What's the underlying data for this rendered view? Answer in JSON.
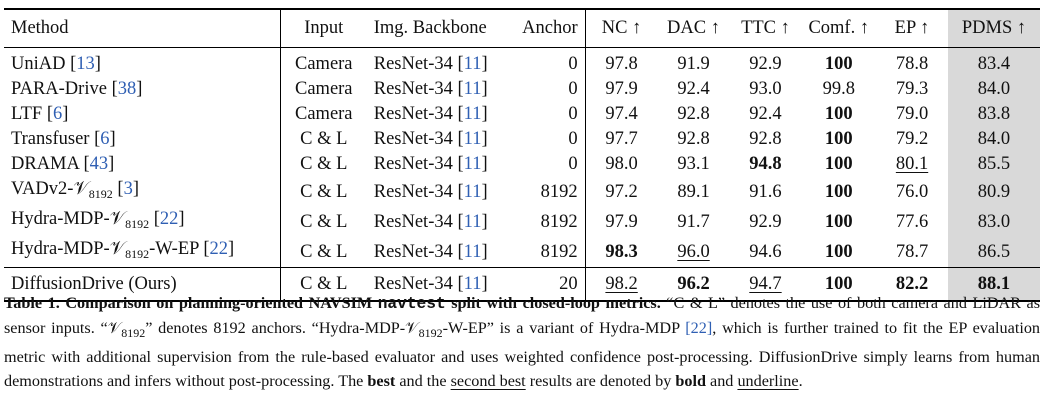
{
  "table": {
    "headers": {
      "method": "Method",
      "input": "Input",
      "backbone": "Img. Backbone",
      "anchor": "Anchor",
      "nc": "NC ↑",
      "dac": "DAC ↑",
      "ttc": "TTC ↑",
      "comf": "Comf. ↑",
      "ep": "EP ↑",
      "pdms": "PDMS ↑"
    },
    "rows": [
      {
        "method": "UniAD",
        "method_sub": "",
        "method_suffix": "",
        "cite": "13",
        "input": "Camera",
        "backbone": "ResNet-34",
        "backbone_cite": "11",
        "anchor": "0",
        "nc": "97.8",
        "dac": "91.9",
        "ttc": "92.9",
        "comf": "100",
        "ep": "78.8",
        "pdms": "83.4"
      },
      {
        "method": "PARA-Drive",
        "method_sub": "",
        "method_suffix": "",
        "cite": "38",
        "input": "Camera",
        "backbone": "ResNet-34",
        "backbone_cite": "11",
        "anchor": "0",
        "nc": "97.9",
        "dac": "92.4",
        "ttc": "93.0",
        "comf": "99.8",
        "ep": "79.3",
        "pdms": "84.0"
      },
      {
        "method": "LTF",
        "method_sub": "",
        "method_suffix": "",
        "cite": "6",
        "input": "Camera",
        "backbone": "ResNet-34",
        "backbone_cite": "11",
        "anchor": "0",
        "nc": "97.4",
        "dac": "92.8",
        "ttc": "92.4",
        "comf": "100",
        "ep": "79.0",
        "pdms": "83.8"
      },
      {
        "method": "Transfuser",
        "method_sub": "",
        "method_suffix": "",
        "cite": "6",
        "input": "C & L",
        "backbone": "ResNet-34",
        "backbone_cite": "11",
        "anchor": "0",
        "nc": "97.7",
        "dac": "92.8",
        "ttc": "92.8",
        "comf": "100",
        "ep": "79.2",
        "pdms": "84.0"
      },
      {
        "method": "DRAMA",
        "method_sub": "",
        "method_suffix": "",
        "cite": "43",
        "input": "C & L",
        "backbone": "ResNet-34",
        "backbone_cite": "11",
        "anchor": "0",
        "nc": "98.0",
        "dac": "93.1",
        "ttc": "94.8",
        "comf": "100",
        "ep": "80.1",
        "pdms": "85.5"
      },
      {
        "method": "VADv2-𝒱",
        "method_sub": "8192",
        "method_suffix": "",
        "cite": "3",
        "input": "C & L",
        "backbone": "ResNet-34",
        "backbone_cite": "11",
        "anchor": "8192",
        "nc": "97.2",
        "dac": "89.1",
        "ttc": "91.6",
        "comf": "100",
        "ep": "76.0",
        "pdms": "80.9"
      },
      {
        "method": "Hydra-MDP-𝒱",
        "method_sub": "8192",
        "method_suffix": "",
        "cite": "22",
        "input": "C & L",
        "backbone": "ResNet-34",
        "backbone_cite": "11",
        "anchor": "8192",
        "nc": "97.9",
        "dac": "91.7",
        "ttc": "92.9",
        "comf": "100",
        "ep": "77.6",
        "pdms": "83.0"
      },
      {
        "method": "Hydra-MDP-𝒱",
        "method_sub": "8192",
        "method_suffix": "-W-EP",
        "cite": "22",
        "input": "C & L",
        "backbone": "ResNet-34",
        "backbone_cite": "11",
        "anchor": "8192",
        "nc": "98.3",
        "dac": "96.0",
        "ttc": "94.6",
        "comf": "100",
        "ep": "78.7",
        "pdms": "86.5"
      },
      {
        "method": "DiffusionDrive (Ours)",
        "method_sub": "",
        "method_suffix": "",
        "cite": "",
        "input": "C & L",
        "backbone": "ResNet-34",
        "backbone_cite": "11",
        "anchor": "20",
        "nc": "98.2",
        "dac": "96.2",
        "ttc": "94.7",
        "comf": "100",
        "ep": "82.2",
        "pdms": "88.1"
      }
    ],
    "emphasis": {
      "bold": [
        [
          4,
          "ttc"
        ],
        [
          7,
          "nc"
        ],
        [
          8,
          "dac"
        ],
        [
          8,
          "comf"
        ],
        [
          8,
          "ep"
        ],
        [
          8,
          "pdms"
        ],
        [
          0,
          "comf"
        ],
        [
          2,
          "comf"
        ],
        [
          3,
          "comf"
        ],
        [
          4,
          "comf"
        ],
        [
          5,
          "comf"
        ],
        [
          6,
          "comf"
        ],
        [
          7,
          "comf"
        ]
      ],
      "underline": [
        [
          4,
          "ep"
        ],
        [
          7,
          "dac"
        ],
        [
          8,
          "nc"
        ],
        [
          8,
          "ttc"
        ]
      ]
    }
  },
  "caption": {
    "label": "Table 1.",
    "title_a": "Comparison on planning-oriented NAVSIM",
    "title_code": "navtest",
    "title_b": "split with closed-loop metrics.",
    "text_1": "“C & L” denotes the use of both camera and LiDAR as sensor inputs. “𝒱",
    "sub_1": "8192",
    "text_2": "” denotes 8192 anchors. “Hydra-MDP-𝒱",
    "sub_2": "8192",
    "text_3": "-W-EP” is a variant of Hydra-MDP",
    "cite": "[22]",
    "text_4": ", which is further trained to fit the EP evaluation metric with additional supervision from the rule-based evaluator and uses weighted confidence post-processing. DiffusionDrive simply learns from human demonstrations and infers without post-processing. The",
    "best": "best",
    "text_5": "and the",
    "second_best": "second best",
    "text_6": "results are denoted by",
    "bold_word": "bold",
    "text_7": "and",
    "underline_word": "underline",
    "text_8": "."
  },
  "colors": {
    "highlight": "#d9d9d9",
    "citation": "#2f5fb3"
  }
}
